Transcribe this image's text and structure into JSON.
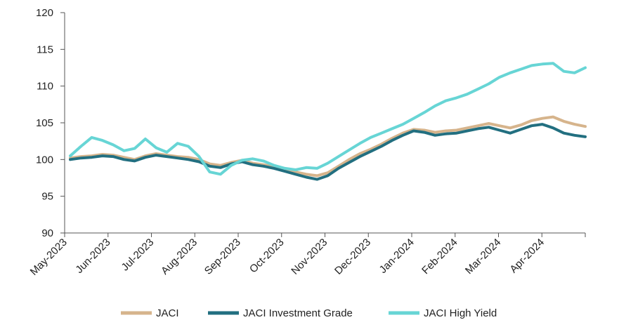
{
  "chart_data": {
    "type": "line",
    "title": "",
    "xlabel": "",
    "ylabel": "",
    "ylim": [
      90,
      120
    ],
    "yticks": [
      90,
      95,
      100,
      105,
      110,
      115,
      120
    ],
    "xticks": [
      "May-2023",
      "Jun-2023",
      "Jul-2023",
      "Aug-2023",
      "Sep-2023",
      "Oct-2023",
      "Nov-2023",
      "Dec-2023",
      "Jan-2024",
      "Feb-2024",
      "Mar-2024",
      "Apr-2024"
    ],
    "grid": false,
    "legend_position": "bottom",
    "x": [
      "May-2023",
      "May-2023",
      "May-2023",
      "May-2023",
      "Jun-2023",
      "Jun-2023",
      "Jun-2023",
      "Jun-2023",
      "Jul-2023",
      "Jul-2023",
      "Jul-2023",
      "Jul-2023",
      "Aug-2023",
      "Aug-2023",
      "Aug-2023",
      "Aug-2023",
      "Sep-2023",
      "Sep-2023",
      "Sep-2023",
      "Sep-2023",
      "Oct-2023",
      "Oct-2023",
      "Oct-2023",
      "Oct-2023",
      "Nov-2023",
      "Nov-2023",
      "Nov-2023",
      "Nov-2023",
      "Dec-2023",
      "Dec-2023",
      "Dec-2023",
      "Dec-2023",
      "Jan-2024",
      "Jan-2024",
      "Jan-2024",
      "Jan-2024",
      "Feb-2024",
      "Feb-2024",
      "Feb-2024",
      "Feb-2024",
      "Mar-2024",
      "Mar-2024",
      "Mar-2024",
      "Mar-2024",
      "Apr-2024",
      "Apr-2024",
      "Apr-2024",
      "Apr-2024",
      "Apr-2024"
    ],
    "series": [
      {
        "name": "JACI",
        "color": "#d6b48c",
        "values": [
          100.2,
          100.4,
          100.5,
          100.7,
          100.6,
          100.3,
          100.0,
          100.5,
          100.8,
          100.6,
          100.4,
          100.3,
          100.0,
          99.4,
          99.2,
          99.6,
          99.9,
          99.5,
          99.3,
          99.0,
          98.7,
          98.3,
          98.0,
          97.8,
          98.2,
          99.1,
          100.0,
          100.8,
          101.4,
          102.1,
          102.9,
          103.6,
          104.1,
          104.0,
          103.7,
          103.9,
          104.0,
          104.3,
          104.6,
          104.9,
          104.6,
          104.3,
          104.7,
          105.3,
          105.6,
          105.8,
          105.2,
          104.8,
          104.5
        ]
      },
      {
        "name": "JACI Investment Grade",
        "color": "#226f80",
        "values": [
          100.0,
          100.2,
          100.3,
          100.5,
          100.4,
          100.0,
          99.8,
          100.3,
          100.6,
          100.4,
          100.2,
          100.0,
          99.7,
          99.1,
          98.9,
          99.4,
          99.7,
          99.3,
          99.1,
          98.8,
          98.4,
          98.0,
          97.6,
          97.3,
          97.8,
          98.8,
          99.6,
          100.4,
          101.1,
          101.8,
          102.6,
          103.3,
          103.9,
          103.7,
          103.3,
          103.5,
          103.6,
          103.9,
          104.2,
          104.4,
          104.0,
          103.6,
          104.1,
          104.6,
          104.8,
          104.3,
          103.6,
          103.3,
          103.1
        ]
      },
      {
        "name": "JACI High Yield",
        "color": "#67d5d5",
        "values": [
          100.5,
          101.8,
          103.0,
          102.6,
          102.0,
          101.2,
          101.5,
          102.8,
          101.6,
          101.0,
          102.2,
          101.8,
          100.4,
          98.3,
          98.0,
          99.2,
          99.9,
          100.1,
          99.8,
          99.2,
          98.8,
          98.6,
          98.9,
          98.8,
          99.5,
          100.4,
          101.3,
          102.2,
          103.0,
          103.6,
          104.2,
          104.8,
          105.6,
          106.4,
          107.3,
          108.0,
          108.4,
          108.9,
          109.6,
          110.3,
          111.2,
          111.8,
          112.3,
          112.8,
          113.0,
          113.1,
          112.0,
          111.8,
          112.5
        ]
      }
    ],
    "x_positions_index": true
  }
}
